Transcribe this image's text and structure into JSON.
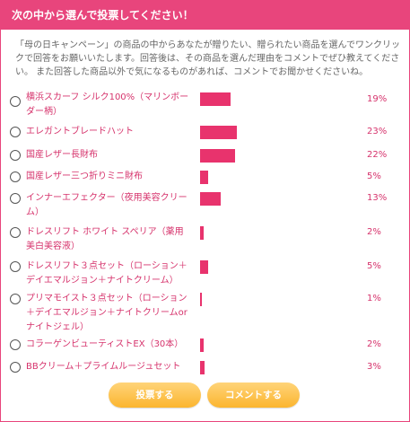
{
  "header": {
    "title": "次の中から選んで投票してください！"
  },
  "intro": "「母の日キャンペーン」の商品の中からあなたが贈りたい、贈られたい商品を選んでワンクリックで回答をお願いいたします。回答後は、その商品を選んだ理由をコメントでぜひ教えてください。 また回答した商品以外で気になるものがあれば、コメントでお聞かせくださいね。",
  "options": [
    {
      "label": "横浜スカーフ シルク100%（マリンボーダー柄）",
      "percent_label": "19%",
      "percent": 19
    },
    {
      "label": "エレガントブレードハット",
      "percent_label": "23%",
      "percent": 23
    },
    {
      "label": "国産レザー長財布",
      "percent_label": "22%",
      "percent": 22
    },
    {
      "label": "国産レザー三つ折りミニ財布",
      "percent_label": "5%",
      "percent": 5
    },
    {
      "label": "インナーエフェクター（夜用美容クリーム）",
      "percent_label": "13%",
      "percent": 13
    },
    {
      "label": "ドレスリフト ホワイト スペリア（薬用美白美容液）",
      "percent_label": "2%",
      "percent": 2
    },
    {
      "label": "ドレスリフト３点セット（ローション＋デイエマルジョン＋ナイトクリーム）",
      "percent_label": "5%",
      "percent": 5
    },
    {
      "label": "プリマモイスト３点セット（ローション＋デイエマルジョン＋ナイトクリームorナイトジェル）",
      "percent_label": "1%",
      "percent": 1
    },
    {
      "label": "コラーゲンビューティストEX（30本）",
      "percent_label": "2%",
      "percent": 2
    },
    {
      "label": "BBクリーム＋プライムルージュセット",
      "percent_label": "3%",
      "percent": 3
    }
  ],
  "buttons": {
    "vote": "投票する",
    "comment": "コメントする"
  },
  "colors": {
    "accent": "#e8457c",
    "bar": "#e8336d",
    "button": "#fbb52f"
  }
}
